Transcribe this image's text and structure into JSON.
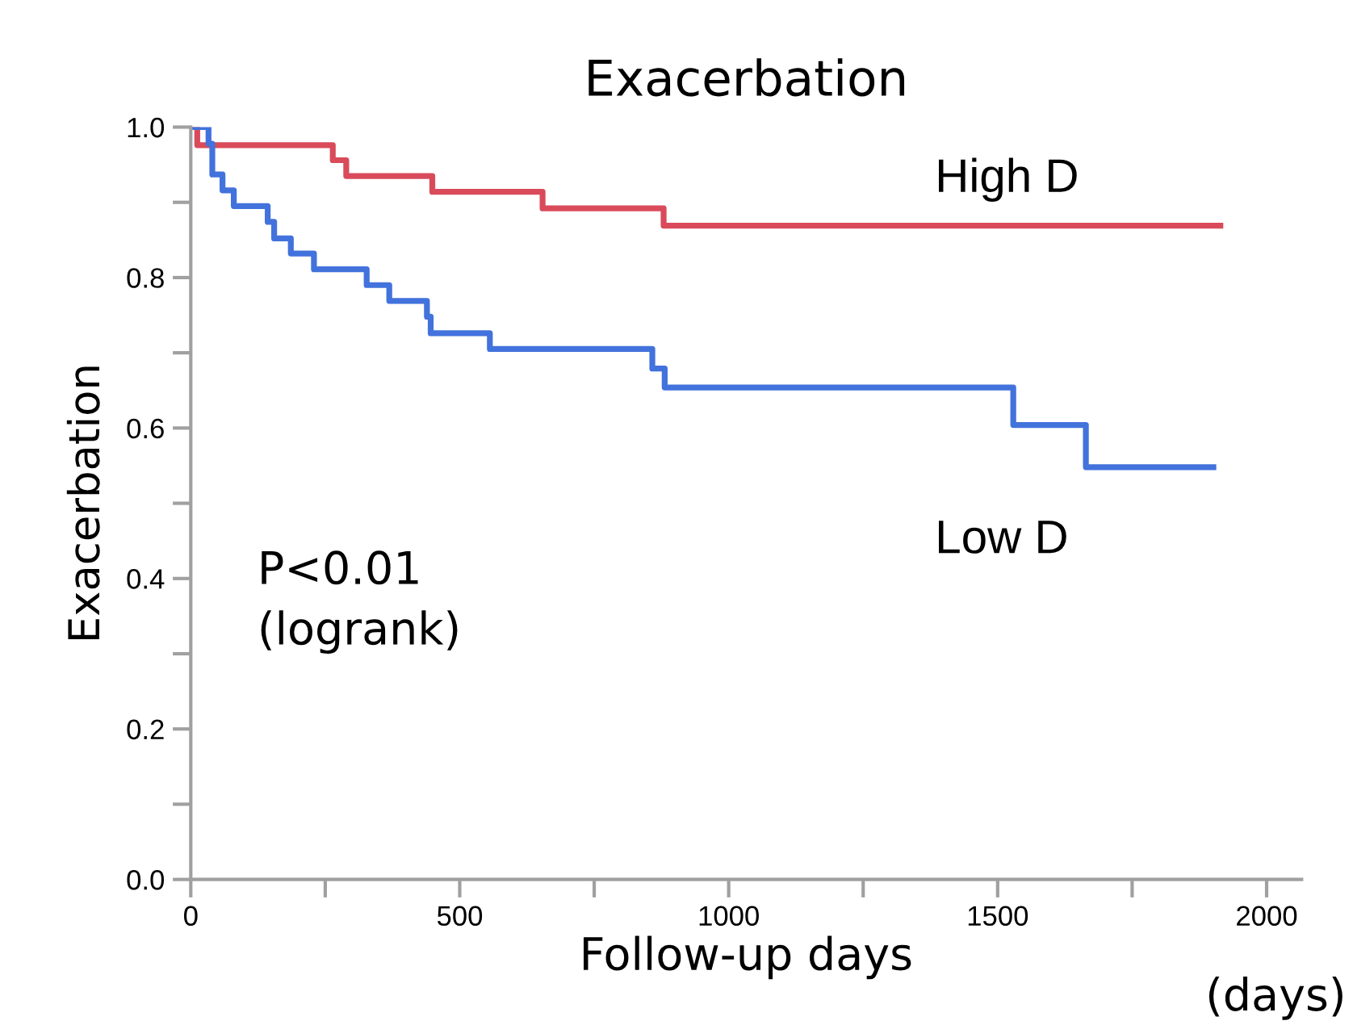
{
  "chart_data": {
    "type": "step",
    "title": "Exacerbation",
    "xlabel": "Follow-up days",
    "ylabel": "Exacerbation",
    "annotations": [
      "P<0.01\n(logrank)",
      "(days)"
    ],
    "series": [
      {
        "name": "High D",
        "color": "#d94b5a",
        "x": [
          0,
          12,
          264,
          289,
          449,
          654,
          879,
          1914
        ],
        "values": [
          1.0,
          0.976,
          0.956,
          0.935,
          0.914,
          0.892,
          0.869,
          0.869
        ]
      },
      {
        "name": "Low D",
        "color": "#4272dc",
        "x": [
          0,
          33,
          40,
          59,
          80,
          143,
          155,
          186,
          229,
          327,
          369,
          439,
          446,
          556,
          858,
          881,
          1529,
          1664,
          1901
        ],
        "values": [
          1.0,
          0.978,
          0.937,
          0.916,
          0.895,
          0.874,
          0.852,
          0.832,
          0.811,
          0.79,
          0.769,
          0.748,
          0.726,
          0.705,
          0.679,
          0.654,
          0.604,
          0.548,
          0.548
        ]
      }
    ],
    "xlim": [
      0,
      2065
    ],
    "ylim": [
      0,
      1.0
    ],
    "xticks": [
      0,
      {
        "value": 250,
        "label": null
      },
      500,
      {
        "value": 750,
        "label": null
      },
      1000,
      {
        "value": 1250,
        "label": null
      },
      1500,
      {
        "value": 1750,
        "label": null
      },
      2000
    ],
    "yticks": [
      {
        "value": 0.0,
        "label": "0.0"
      },
      {
        "value": 0.1,
        "label": null
      },
      {
        "value": 0.2,
        "label": "0.2"
      },
      {
        "value": 0.3,
        "label": null
      },
      {
        "value": 0.4,
        "label": "0.4"
      },
      {
        "value": 0.5,
        "label": null
      },
      {
        "value": 0.6,
        "label": "0.6"
      },
      {
        "value": 0.7,
        "label": null
      },
      {
        "value": 0.8,
        "label": "0.8"
      },
      {
        "value": 0.9,
        "label": null
      },
      {
        "value": 1.0,
        "label": "1.0"
      }
    ],
    "grid": false,
    "legend": false
  }
}
